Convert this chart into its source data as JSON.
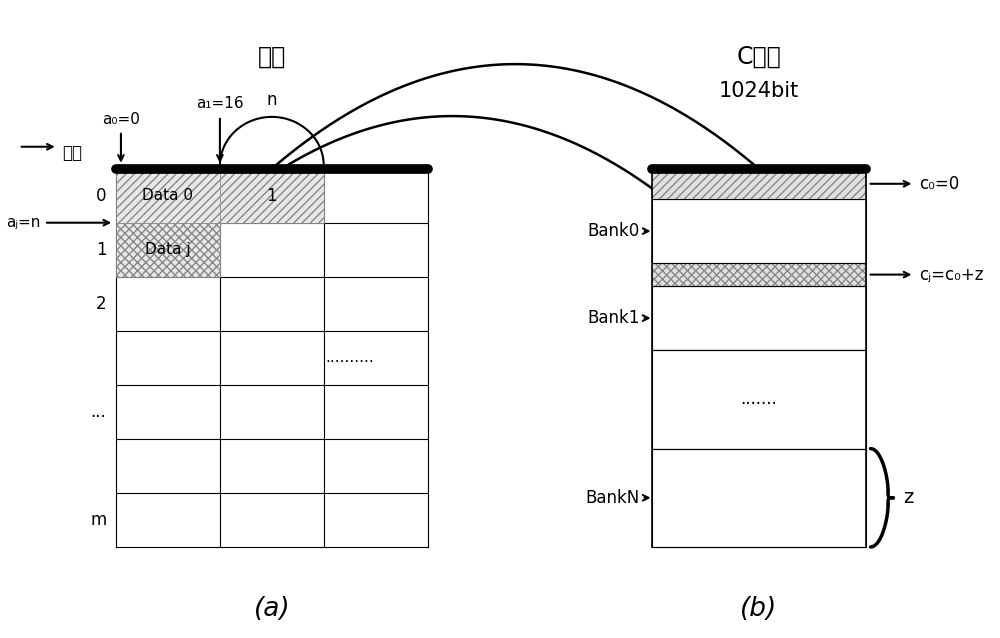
{
  "bg_color": "#ffffff",
  "left_title": "外存",
  "right_title": "C缓存",
  "right_subtitle": "1024bit",
  "label_a": "(a)",
  "label_b": "(b)",
  "bank_labels": [
    "Bank0",
    "Bank1",
    "BankN"
  ],
  "c0_label": "c₀=0",
  "cj_label": "cⱼ=c₀+z",
  "z_label": "z",
  "n_label": "n",
  "a0_label": "a₀=0",
  "a1_label": "a₁=16",
  "aj_label": "aⱼ=n",
  "dizhi_label": "地址",
  "data0_label": "Data 0",
  "dataj_label": "Data j",
  "dots_left": "..........",
  "dots_right": ".......",
  "font_size": 12,
  "font_size_title": 17,
  "font_size_sub": 15
}
